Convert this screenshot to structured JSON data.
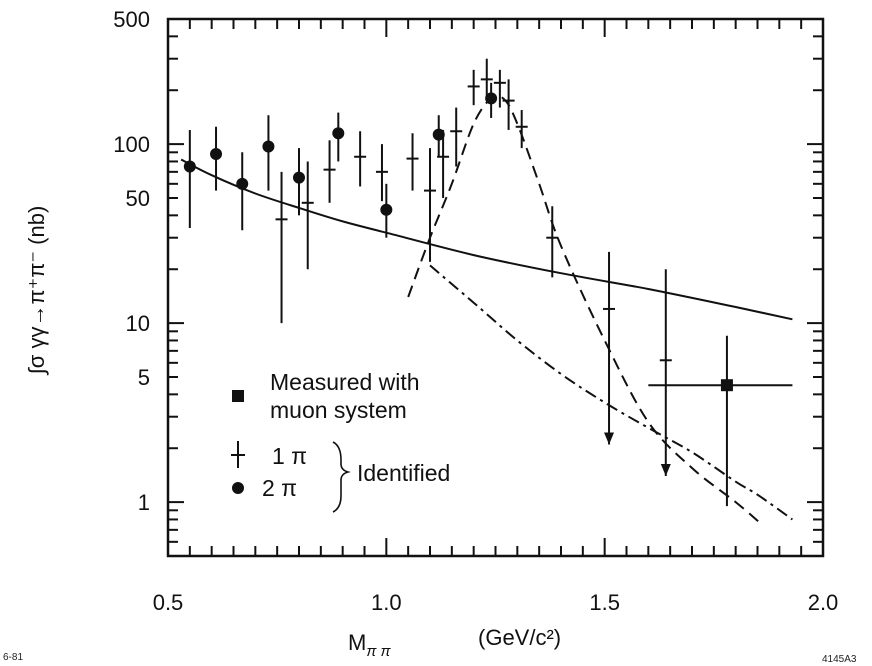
{
  "chart_data": {
    "type": "scatter",
    "xlabel": "M",
    "xlabel_sub": "π π",
    "xlabel_unit": "(GeV/c²)",
    "ylabel": "∫σ γγ→π⁺π⁻ (nb)",
    "xlim": [
      0.5,
      2.0
    ],
    "ylim": [
      0.5,
      500
    ],
    "yscale": "log",
    "x_ticks": [
      "0.5",
      "1.0",
      "1.5",
      "2.0"
    ],
    "y_ticks": [
      "500",
      "100",
      "50",
      "10",
      "5",
      "1"
    ],
    "y_tick_values": [
      500,
      100,
      50,
      10,
      5,
      1
    ],
    "corner_left": "6-81",
    "corner_right": "4145A3",
    "legend": {
      "placement": "lower-left",
      "measured_line1": "Measured with",
      "measured_line2": "muon system",
      "one_pi": "1 π",
      "two_pi": "2 π",
      "identified": "Identified"
    },
    "series": [
      {
        "name": "2 π",
        "marker": "circle",
        "points": [
          {
            "x": 0.55,
            "y": 75,
            "ylo": 34,
            "yhi": 120
          },
          {
            "x": 0.61,
            "y": 88,
            "ylo": 55,
            "yhi": 125
          },
          {
            "x": 0.67,
            "y": 60,
            "ylo": 33,
            "yhi": 90
          },
          {
            "x": 0.73,
            "y": 97,
            "ylo": 55,
            "yhi": 145
          },
          {
            "x": 0.8,
            "y": 65,
            "ylo": 40,
            "yhi": 95
          },
          {
            "x": 0.89,
            "y": 115,
            "ylo": 80,
            "yhi": 150
          },
          {
            "x": 1.0,
            "y": 43,
            "ylo": 30,
            "yhi": 60
          },
          {
            "x": 1.12,
            "y": 113,
            "ylo": 85,
            "yhi": 145
          },
          {
            "x": 1.24,
            "y": 180,
            "ylo": 140,
            "yhi": 220
          }
        ]
      },
      {
        "name": "1 π",
        "marker": "cross",
        "points": [
          {
            "x": 0.76,
            "y": 38,
            "ylo": 10,
            "yhi": 70
          },
          {
            "x": 0.82,
            "y": 47,
            "ylo": 20,
            "yhi": 80
          },
          {
            "x": 0.87,
            "y": 72,
            "ylo": 47,
            "yhi": 105
          },
          {
            "x": 0.94,
            "y": 85,
            "ylo": 58,
            "yhi": 118
          },
          {
            "x": 0.99,
            "y": 70,
            "ylo": 48,
            "yhi": 100
          },
          {
            "x": 1.06,
            "y": 83,
            "ylo": 55,
            "yhi": 115
          },
          {
            "x": 1.1,
            "y": 55,
            "ylo": 22,
            "yhi": 95
          },
          {
            "x": 1.13,
            "y": 85,
            "ylo": 50,
            "yhi": 120
          },
          {
            "x": 1.16,
            "y": 118,
            "ylo": 75,
            "yhi": 160
          },
          {
            "x": 1.2,
            "y": 210,
            "ylo": 165,
            "yhi": 260
          },
          {
            "x": 1.23,
            "y": 230,
            "ylo": 175,
            "yhi": 300
          },
          {
            "x": 1.26,
            "y": 220,
            "ylo": 160,
            "yhi": 260
          },
          {
            "x": 1.28,
            "y": 175,
            "ylo": 120,
            "yhi": 230
          },
          {
            "x": 1.31,
            "y": 125,
            "ylo": 95,
            "yhi": 155
          },
          {
            "x": 1.38,
            "y": 30,
            "ylo": 18,
            "yhi": 45
          },
          {
            "x": 1.51,
            "y": 12,
            "ylo": 2.1,
            "yhi": 25,
            "limit": true
          },
          {
            "x": 1.64,
            "y": 6.2,
            "ylo": 1.4,
            "yhi": 20,
            "limit": true
          }
        ]
      },
      {
        "name": "Measured with muon system",
        "marker": "square",
        "points": [
          {
            "x": 1.78,
            "y": 4.5,
            "ylo": 0.95,
            "yhi": 8.5,
            "xlo": 1.6,
            "xhi": 1.93
          }
        ]
      }
    ],
    "curves": [
      {
        "style": "solid",
        "points": [
          [
            0.53,
            82
          ],
          [
            0.6,
            67
          ],
          [
            0.7,
            53
          ],
          [
            0.8,
            44
          ],
          [
            0.9,
            37
          ],
          [
            1.0,
            32
          ],
          [
            1.2,
            24
          ],
          [
            1.4,
            19
          ],
          [
            1.6,
            15.5
          ],
          [
            1.8,
            12.3
          ],
          [
            1.93,
            10.5
          ]
        ]
      },
      {
        "style": "dashed",
        "points": [
          [
            1.05,
            14
          ],
          [
            1.1,
            30
          ],
          [
            1.15,
            60
          ],
          [
            1.2,
            130
          ],
          [
            1.24,
            180
          ],
          [
            1.27,
            178
          ],
          [
            1.3,
            130
          ],
          [
            1.35,
            60
          ],
          [
            1.4,
            27
          ],
          [
            1.5,
            8
          ],
          [
            1.6,
            2.8
          ],
          [
            1.7,
            1.55
          ],
          [
            1.8,
            1.0
          ],
          [
            1.86,
            0.75
          ]
        ]
      },
      {
        "style": "dashdot",
        "points": [
          [
            1.1,
            21
          ],
          [
            1.2,
            13
          ],
          [
            1.3,
            8
          ],
          [
            1.4,
            5.2
          ],
          [
            1.5,
            3.6
          ],
          [
            1.6,
            2.6
          ],
          [
            1.7,
            1.9
          ],
          [
            1.8,
            1.3
          ],
          [
            1.85,
            1.1
          ],
          [
            1.93,
            0.8
          ]
        ]
      }
    ]
  }
}
